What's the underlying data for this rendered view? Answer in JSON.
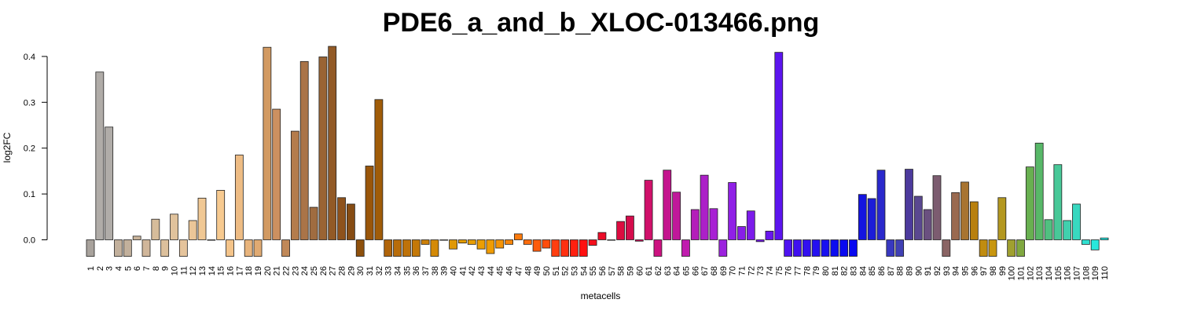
{
  "chart_data": {
    "type": "bar",
    "title": "PDE6_a_and_b_XLOC-013466.png",
    "xlabel": "metacells",
    "ylabel": "log2FC",
    "ylim": [
      -0.036,
      0.42
    ],
    "yticks": [
      "0.0",
      "0.1",
      "0.2",
      "0.3",
      "0.4"
    ],
    "ytick_values": [
      0,
      0.1,
      0.2,
      0.3,
      0.4
    ],
    "grid": false,
    "categories": [
      "1",
      "2",
      "3",
      "4",
      "5",
      "6",
      "7",
      "8",
      "9",
      "10",
      "11",
      "12",
      "13",
      "14",
      "15",
      "16",
      "17",
      "18",
      "19",
      "20",
      "21",
      "22",
      "23",
      "24",
      "25",
      "26",
      "27",
      "28",
      "29",
      "30",
      "31",
      "32",
      "33",
      "34",
      "35",
      "36",
      "37",
      "38",
      "39",
      "40",
      "41",
      "42",
      "43",
      "44",
      "45",
      "46",
      "47",
      "48",
      "49",
      "50",
      "51",
      "52",
      "53",
      "54",
      "55",
      "56",
      "57",
      "58",
      "59",
      "60",
      "61",
      "62",
      "63",
      "64",
      "65",
      "66",
      "67",
      "68",
      "69",
      "70",
      "71",
      "72",
      "73",
      "74",
      "75",
      "76",
      "77",
      "78",
      "79",
      "80",
      "81",
      "82",
      "83",
      "84",
      "85",
      "86",
      "87",
      "88",
      "89",
      "90",
      "91",
      "92",
      "93",
      "94",
      "95",
      "96",
      "97",
      "98",
      "99",
      "100",
      "101",
      "102",
      "103",
      "104",
      "105",
      "106",
      "107",
      "108",
      "109",
      "110"
    ],
    "values": [
      -0.036,
      0.366,
      0.246,
      -0.036,
      -0.036,
      0.008,
      -0.036,
      0.045,
      -0.036,
      0.056,
      -0.036,
      0.042,
      0.091,
      0.0,
      0.108,
      -0.036,
      0.185,
      -0.036,
      -0.036,
      0.42,
      0.285,
      -0.036,
      0.237,
      0.389,
      0.071,
      0.399,
      0.422,
      0.092,
      0.078,
      -0.036,
      0.161,
      0.306,
      -0.036,
      -0.036,
      -0.036,
      -0.036,
      -0.01,
      -0.036,
      0.0,
      -0.02,
      -0.007,
      -0.01,
      -0.02,
      -0.03,
      -0.018,
      -0.01,
      0.013,
      -0.01,
      -0.025,
      -0.018,
      -0.036,
      -0.036,
      -0.036,
      -0.036,
      -0.012,
      0.016,
      0.0,
      0.04,
      0.052,
      -0.003,
      0.13,
      -0.036,
      0.152,
      0.104,
      -0.036,
      0.066,
      0.141,
      0.068,
      -0.036,
      0.125,
      0.029,
      0.063,
      -0.004,
      0.019,
      0.409,
      -0.036,
      -0.036,
      -0.036,
      -0.036,
      -0.036,
      -0.036,
      -0.036,
      -0.036,
      0.099,
      0.09,
      0.152,
      -0.036,
      -0.036,
      0.154,
      0.095,
      0.066,
      0.14,
      -0.036,
      0.103,
      0.126,
      0.083,
      -0.036,
      -0.036,
      0.092,
      -0.036,
      -0.036,
      0.159,
      0.211,
      0.044,
      0.164,
      0.042,
      0.078,
      -0.01,
      -0.022,
      0.004
    ],
    "colors": [
      "#a8a29c",
      "#b0aca8",
      "#b0aca8",
      "#c2b09c",
      "#c2b09c",
      "#c9b39a",
      "#d0b69a",
      "#d6bc9a",
      "#dcc09c",
      "#e0c29c",
      "#e5c49c",
      "#ebc698",
      "#f0c894",
      "#f2c890",
      "#f7ca90",
      "#f4c48a",
      "#eebc84",
      "#e8b47c",
      "#e0aa72",
      "#d29a62",
      "#cc9060",
      "#c08858",
      "#b47c4c",
      "#aa7448",
      "#a06c40",
      "#9a6434",
      "#925a26",
      "#8e521c",
      "#864c14",
      "#8e500c",
      "#9a560a",
      "#a05c08",
      "#b0640a",
      "#b86c0a",
      "#be720a",
      "#c47808",
      "#cc8008",
      "#d48a06",
      "#d89006",
      "#e09804",
      "#e49c04",
      "#e89e04",
      "#ec9e04",
      "#f09c04",
      "#f49408",
      "#f8860a",
      "#fb7a0c",
      "#fc6c0c",
      "#fe5c0c",
      "#ff4c0c",
      "#ff3e10",
      "#ff3010",
      "#ff2010",
      "#ff1010",
      "#f4101c",
      "#ec0c28",
      "#e40c34",
      "#dc0c40",
      "#d40c4c",
      "#cc0c58",
      "#d0106a",
      "#cc1280",
      "#c4148e",
      "#c0189a",
      "#c01cae",
      "#b41eba",
      "#ac20c8",
      "#a820d4",
      "#9c22de",
      "#9020e6",
      "#881ee8",
      "#7c1cea",
      "#741aec",
      "#6a16ee",
      "#5c14ef",
      "#4e12f0",
      "#4010f0",
      "#3210f0",
      "#2410f0",
      "#1810f0",
      "#0c0cf0",
      "#0808f0",
      "#0808f0",
      "#1414e0",
      "#1c1cd8",
      "#2a28cc",
      "#3838c0",
      "#4040b4",
      "#4c3a9c",
      "#5a4890",
      "#6a5080",
      "#7c5c70",
      "#8a6464",
      "#9a6a50",
      "#a87430",
      "#b8800e",
      "#c08c10",
      "#c8960e",
      "#b49820",
      "#a0a030",
      "#80a840",
      "#68b050",
      "#58b868",
      "#50c080",
      "#48c898",
      "#40d0ae",
      "#38d8c0",
      "#30e0d0",
      "#28e8dc",
      "#20f0e8",
      "#18e8f0"
    ]
  }
}
